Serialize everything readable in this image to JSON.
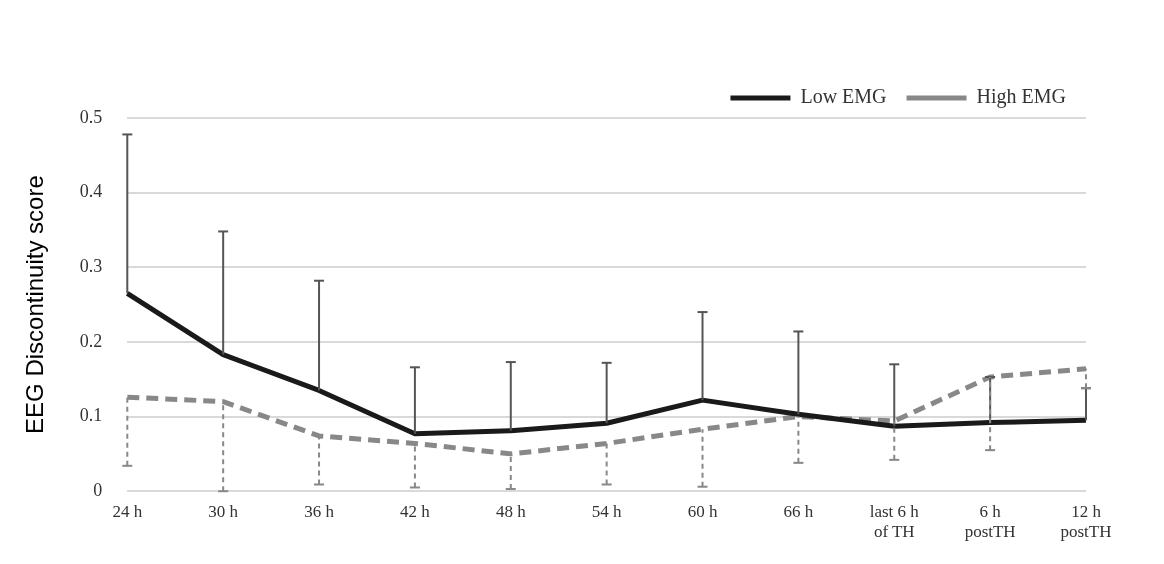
{
  "chart_data": {
    "type": "line",
    "ylabel": "EEG Discontinuity score",
    "categories": [
      "24 h",
      "30 h",
      "36 h",
      "42 h",
      "48 h",
      "54 h",
      "60 h",
      "66 h",
      "last 6 h\nof TH",
      "6 h\npostTH",
      "12 h\npostTH"
    ],
    "series": [
      {
        "name": "Low EMG",
        "color": "#1a1a1a",
        "line_style": "solid",
        "values": [
          0.265,
          0.183,
          0.135,
          0.077,
          0.081,
          0.091,
          0.122,
          0.103,
          0.087,
          0.092,
          0.095
        ],
        "errors": [
          [
            0.265,
            0.478
          ],
          [
            0.183,
            0.348
          ],
          [
            0.135,
            0.282
          ],
          [
            0.077,
            0.166
          ],
          [
            0.081,
            0.173
          ],
          [
            0.091,
            0.172
          ],
          [
            0.122,
            0.24
          ],
          [
            0.103,
            0.214
          ],
          [
            0.087,
            0.17
          ],
          [
            0.092,
            0.153
          ],
          [
            0.095,
            0.138
          ]
        ]
      },
      {
        "name": "High EMG",
        "color": "#888888",
        "line_style": "dashed",
        "values": [
          0.126,
          0.12,
          0.074,
          0.064,
          0.05,
          0.064,
          0.083,
          0.1,
          0.094,
          0.153,
          0.164
        ],
        "errors": [
          [
            0.034,
            0.126
          ],
          [
            0,
            0.12
          ],
          [
            0.009,
            0.074
          ],
          [
            0.005,
            0.064
          ],
          [
            0.003,
            0.05
          ],
          [
            0.009,
            0.064
          ],
          [
            0.006,
            0.083
          ],
          [
            0.038,
            0.1
          ],
          [
            0.042,
            0.094
          ],
          [
            0.055,
            0.153
          ],
          [
            0.138,
            0.164
          ]
        ]
      }
    ],
    "ylim": [
      0,
      0.5
    ],
    "yticks": [
      0,
      0.1,
      0.2,
      0.3,
      0.4,
      0.5
    ],
    "grid": "y",
    "legend": "top right",
    "marker": "none"
  }
}
